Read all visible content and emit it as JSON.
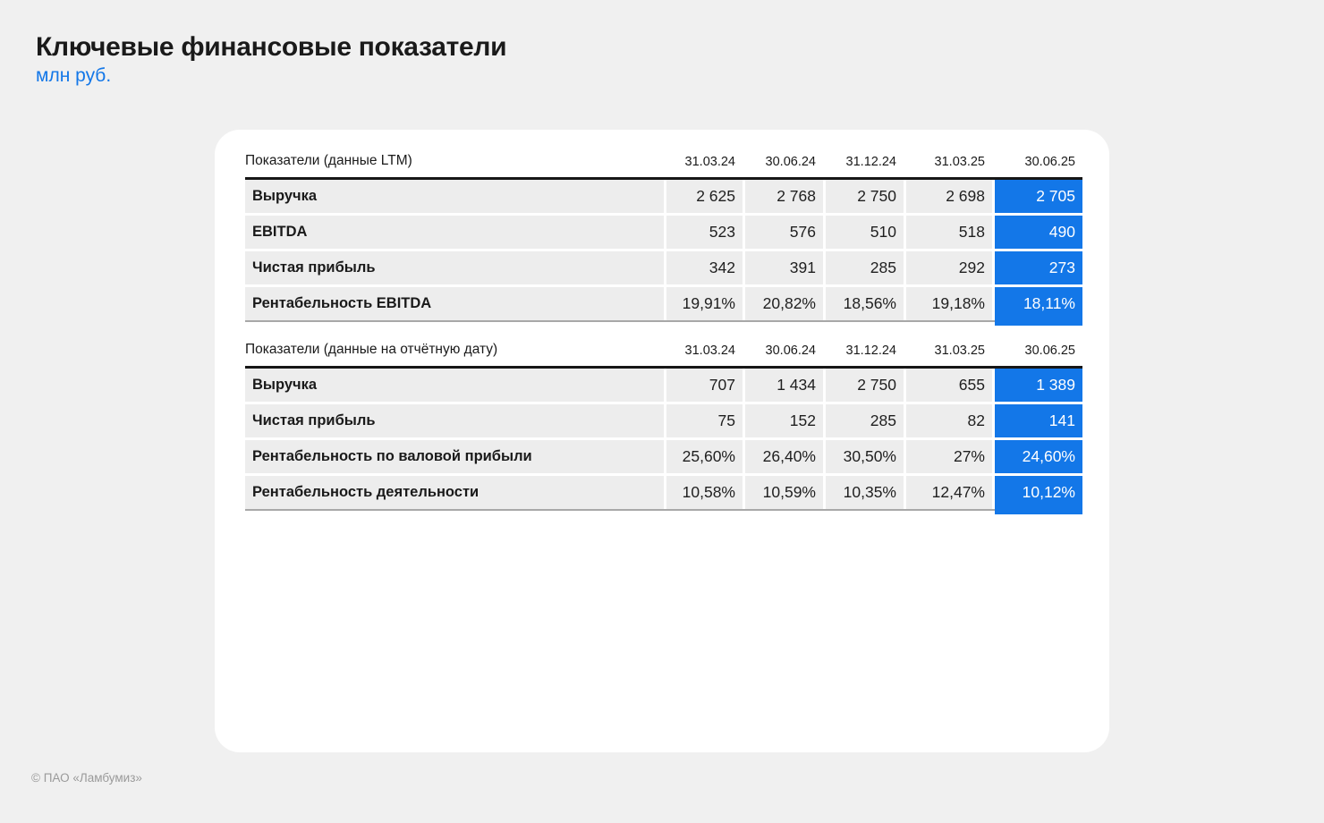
{
  "page": {
    "title": "Ключевые финансовые показатели",
    "subtitle": "млн руб.",
    "footer": "© ПАО «Ламбумиз»"
  },
  "colors": {
    "accent_blue": "#1377E8",
    "page_bg": "#F0F0F0",
    "card_bg": "#FFFFFF",
    "row_bg": "#EDEDED",
    "header_rule": "#161616",
    "bottom_rule": "#A8A8A8",
    "footer_text": "#9A9A9A",
    "highlight_text": "#FFFFFF"
  },
  "tables": [
    {
      "header_label": "Показатели (данные LTM)",
      "columns": [
        "31.03.24",
        "30.06.24",
        "31.12.24",
        "31.03.25",
        "30.06.25"
      ],
      "rows": [
        {
          "label": "Выручка",
          "values": [
            "2 625",
            "2 768",
            "2 750",
            "2 698",
            "2 705"
          ]
        },
        {
          "label": "EBITDA",
          "values": [
            "523",
            "576",
            "510",
            "518",
            "490"
          ]
        },
        {
          "label": "Чистая прибыль",
          "values": [
            "342",
            "391",
            "285",
            "292",
            "273"
          ]
        },
        {
          "label": "Рентабельность EBITDA",
          "values": [
            "19,91%",
            "20,82%",
            "18,56%",
            "19,18%",
            "18,11%"
          ]
        }
      ]
    },
    {
      "header_label": "Показатели (данные на отчётную дату)",
      "columns": [
        "31.03.24",
        "30.06.24",
        "31.12.24",
        "31.03.25",
        "30.06.25"
      ],
      "rows": [
        {
          "label": "Выручка",
          "values": [
            "707",
            "1 434",
            "2 750",
            "655",
            "1 389"
          ]
        },
        {
          "label": "Чистая прибыль",
          "values": [
            "75",
            "152",
            "285",
            "82",
            "141"
          ]
        },
        {
          "label": "Рентабельность по валовой прибыли",
          "values": [
            "25,60%",
            "26,40%",
            "30,50%",
            "27%",
            "24,60%"
          ]
        },
        {
          "label": "Рентабельность деятельности",
          "values": [
            "10,58%",
            "10,59%",
            "10,35%",
            "12,47%",
            "10,12%"
          ]
        }
      ]
    }
  ]
}
